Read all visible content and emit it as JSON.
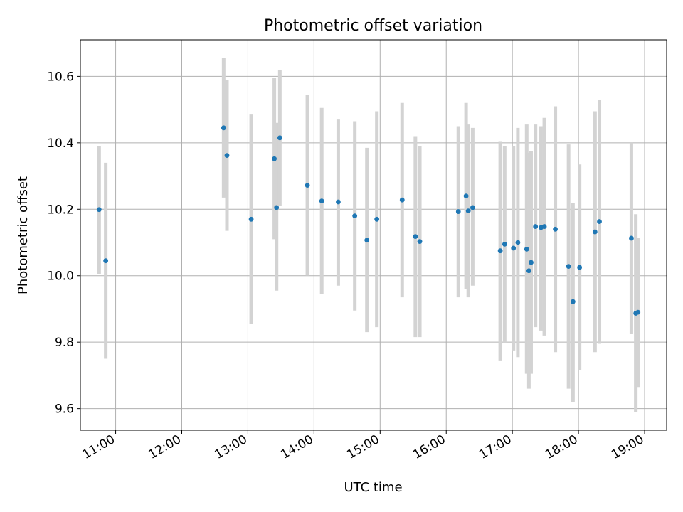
{
  "chart_data": {
    "type": "scatter",
    "title": "Photometric offset variation",
    "xlabel": "UTC time",
    "ylabel": "Photometric offset",
    "xlim": [
      "10:28",
      "19:20"
    ],
    "ylim": [
      9.535,
      10.71
    ],
    "grid": true,
    "x_ticks": [
      "11:00",
      "12:00",
      "13:00",
      "14:00",
      "15:00",
      "16:00",
      "17:00",
      "18:00",
      "19:00"
    ],
    "y_ticks": [
      "9.6",
      "9.8",
      "10.0",
      "10.2",
      "10.4",
      "10.6"
    ],
    "point_color": "#1f77b4",
    "errorbar_color": "#d3d3d3",
    "points": [
      {
        "x": "10:45",
        "y": 10.199,
        "lo": 10.005,
        "hi": 10.39
      },
      {
        "x": "10:51",
        "y": 10.045,
        "lo": 9.75,
        "hi": 10.34
      },
      {
        "x": "12:38",
        "y": 10.445,
        "lo": 10.235,
        "hi": 10.655
      },
      {
        "x": "12:41",
        "y": 10.362,
        "lo": 10.135,
        "hi": 10.59
      },
      {
        "x": "13:03",
        "y": 10.17,
        "lo": 9.855,
        "hi": 10.485
      },
      {
        "x": "13:24",
        "y": 10.352,
        "lo": 10.11,
        "hi": 10.595
      },
      {
        "x": "13:26",
        "y": 10.205,
        "lo": 9.955,
        "hi": 10.46
      },
      {
        "x": "13:29",
        "y": 10.415,
        "lo": 10.21,
        "hi": 10.62
      },
      {
        "x": "13:54",
        "y": 10.272,
        "lo": 10.0,
        "hi": 10.545
      },
      {
        "x": "14:07",
        "y": 10.225,
        "lo": 9.945,
        "hi": 10.505
      },
      {
        "x": "14:22",
        "y": 10.222,
        "lo": 9.97,
        "hi": 10.47
      },
      {
        "x": "14:37",
        "y": 10.18,
        "lo": 9.895,
        "hi": 10.465
      },
      {
        "x": "14:48",
        "y": 10.107,
        "lo": 9.83,
        "hi": 10.385
      },
      {
        "x": "14:57",
        "y": 10.17,
        "lo": 9.845,
        "hi": 10.495
      },
      {
        "x": "15:20",
        "y": 10.228,
        "lo": 9.935,
        "hi": 10.52
      },
      {
        "x": "15:32",
        "y": 10.118,
        "lo": 9.815,
        "hi": 10.42
      },
      {
        "x": "15:36",
        "y": 10.103,
        "lo": 9.815,
        "hi": 10.39
      },
      {
        "x": "16:11",
        "y": 10.193,
        "lo": 9.935,
        "hi": 10.45
      },
      {
        "x": "16:18",
        "y": 10.24,
        "lo": 9.96,
        "hi": 10.52
      },
      {
        "x": "16:20",
        "y": 10.195,
        "lo": 9.935,
        "hi": 10.455
      },
      {
        "x": "16:24",
        "y": 10.205,
        "lo": 9.97,
        "hi": 10.445
      },
      {
        "x": "16:49",
        "y": 10.075,
        "lo": 9.745,
        "hi": 10.405
      },
      {
        "x": "16:53",
        "y": 10.095,
        "lo": 9.8,
        "hi": 10.39
      },
      {
        "x": "17:01",
        "y": 10.083,
        "lo": 9.775,
        "hi": 10.39
      },
      {
        "x": "17:05",
        "y": 10.1,
        "lo": 9.755,
        "hi": 10.445
      },
      {
        "x": "17:13",
        "y": 10.08,
        "lo": 9.705,
        "hi": 10.455
      },
      {
        "x": "17:15",
        "y": 10.015,
        "lo": 9.66,
        "hi": 10.37
      },
      {
        "x": "17:17",
        "y": 10.04,
        "lo": 9.705,
        "hi": 10.375
      },
      {
        "x": "17:21",
        "y": 10.148,
        "lo": 9.845,
        "hi": 10.455
      },
      {
        "x": "17:26",
        "y": 10.145,
        "lo": 9.835,
        "hi": 10.45
      },
      {
        "x": "17:29",
        "y": 10.148,
        "lo": 9.82,
        "hi": 10.475
      },
      {
        "x": "17:39",
        "y": 10.14,
        "lo": 9.77,
        "hi": 10.51
      },
      {
        "x": "17:51",
        "y": 10.028,
        "lo": 9.66,
        "hi": 10.395
      },
      {
        "x": "17:55",
        "y": 9.922,
        "lo": 9.62,
        "hi": 10.22
      },
      {
        "x": "18:01",
        "y": 10.025,
        "lo": 9.715,
        "hi": 10.335
      },
      {
        "x": "18:15",
        "y": 10.132,
        "lo": 9.77,
        "hi": 10.495
      },
      {
        "x": "18:19",
        "y": 10.163,
        "lo": 9.795,
        "hi": 10.53
      },
      {
        "x": "18:48",
        "y": 10.113,
        "lo": 9.825,
        "hi": 10.4
      },
      {
        "x": "18:52",
        "y": 9.887,
        "lo": 9.59,
        "hi": 10.185
      },
      {
        "x": "18:54",
        "y": 9.89,
        "lo": 9.665,
        "hi": 10.115
      }
    ]
  }
}
